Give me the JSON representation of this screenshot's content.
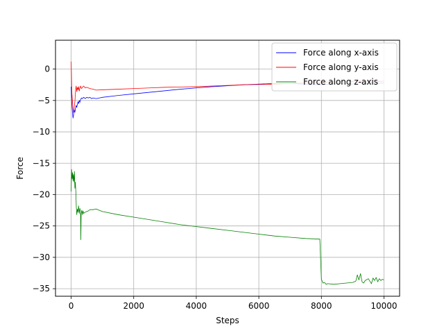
{
  "chart_data": {
    "type": "line",
    "title": "",
    "xlabel": "Steps",
    "ylabel": "Force",
    "xlim": [
      -500,
      10500
    ],
    "ylim": [
      -36.2,
      4.6
    ],
    "xticks": [
      0,
      2000,
      4000,
      6000,
      8000,
      10000
    ],
    "yticks": [
      0,
      -5,
      -10,
      -15,
      -20,
      -25,
      -30,
      -35
    ],
    "grid": true,
    "legend_position": "top-right",
    "series": [
      {
        "name": "Force along x-axis",
        "color": "#0000ff",
        "x": [
          0,
          20,
          40,
          60,
          80,
          100,
          120,
          140,
          160,
          180,
          200,
          220,
          240,
          260,
          280,
          300,
          330,
          360,
          400,
          450,
          500,
          550,
          600,
          650,
          700,
          800,
          900,
          1000,
          1500,
          2000,
          2500,
          3000,
          3500,
          4000,
          4500,
          5000,
          5500,
          6000,
          6500,
          7000,
          7500,
          8000,
          8500,
          9000,
          9200,
          9400,
          9600,
          9800,
          10000
        ],
        "y": [
          -2.8,
          -5.5,
          -6.8,
          -7.8,
          -7.2,
          -6.5,
          -6.9,
          -6.2,
          -5.8,
          -6.1,
          -5.6,
          -5.2,
          -5.5,
          -5.0,
          -5.3,
          -4.9,
          -4.6,
          -4.7,
          -4.5,
          -4.7,
          -4.5,
          -4.6,
          -4.5,
          -4.7,
          -4.6,
          -4.7,
          -4.6,
          -4.5,
          -4.2,
          -3.95,
          -3.7,
          -3.45,
          -3.2,
          -3.0,
          -2.8,
          -2.65,
          -2.5,
          -2.4,
          -2.3,
          -2.3,
          -2.4,
          -2.5,
          -2.3,
          -2.4,
          -2.2,
          -2.3,
          -2.2,
          -2.3,
          -2.2
        ]
      },
      {
        "name": "Force along y-axis",
        "color": "#ff0000",
        "x": [
          0,
          10,
          20,
          40,
          60,
          80,
          100,
          120,
          140,
          160,
          180,
          200,
          220,
          240,
          260,
          280,
          300,
          330,
          360,
          400,
          450,
          500,
          600,
          700,
          800,
          1000,
          1500,
          2000,
          2500,
          3000,
          3500,
          4000,
          4500,
          5000,
          5500,
          6000,
          6500,
          7000,
          7500,
          8000,
          8500,
          9000,
          9200,
          9400,
          9600,
          9800,
          10000
        ],
        "y": [
          1.2,
          -0.8,
          -3.5,
          -5.0,
          -6.5,
          -7.0,
          -6.0,
          -5.2,
          -3.4,
          -2.7,
          -3.6,
          -2.9,
          -3.3,
          -2.8,
          -3.5,
          -3.0,
          -2.7,
          -3.1,
          -2.9,
          -2.7,
          -3.0,
          -2.9,
          -3.1,
          -3.2,
          -3.35,
          -3.3,
          -3.2,
          -3.1,
          -3.0,
          -2.9,
          -2.85,
          -2.8,
          -2.7,
          -2.6,
          -2.5,
          -2.45,
          -2.4,
          -2.3,
          -2.2,
          -2.1,
          -2.0,
          -2.0,
          -1.8,
          -2.1,
          -1.7,
          -2.0,
          -1.9
        ]
      },
      {
        "name": "Force along z-axis",
        "color": "#008000",
        "x": [
          0,
          15,
          30,
          45,
          60,
          75,
          90,
          105,
          120,
          135,
          150,
          165,
          180,
          200,
          220,
          240,
          260,
          280,
          300,
          310,
          320,
          340,
          360,
          380,
          400,
          450,
          500,
          550,
          600,
          700,
          800,
          900,
          1000,
          1500,
          2000,
          2500,
          3000,
          3500,
          4000,
          4500,
          5000,
          5500,
          6000,
          6500,
          7000,
          7500,
          7950,
          8000,
          8010,
          8050,
          8100,
          8150,
          8200,
          8400,
          8600,
          8800,
          9000,
          9100,
          9150,
          9200,
          9250,
          9300,
          9350,
          9400,
          9500,
          9600,
          9650,
          9700,
          9750,
          9800,
          9850,
          9900,
          9950,
          10000
        ],
        "y": [
          -19.5,
          -16.0,
          -17.5,
          -16.5,
          -17.8,
          -16.8,
          -18.0,
          -16.3,
          -19.0,
          -18.0,
          -19.5,
          -22.0,
          -23.2,
          -22.3,
          -22.8,
          -21.8,
          -23.0,
          -22.2,
          -22.8,
          -27.2,
          -23.0,
          -22.5,
          -23.2,
          -22.6,
          -23.0,
          -22.8,
          -22.7,
          -22.6,
          -22.4,
          -22.4,
          -22.3,
          -22.5,
          -22.7,
          -23.2,
          -23.6,
          -24.0,
          -24.4,
          -24.8,
          -25.1,
          -25.4,
          -25.7,
          -26.0,
          -26.3,
          -26.6,
          -26.8,
          -27.0,
          -27.1,
          -33.5,
          -33.6,
          -34.1,
          -34.0,
          -34.3,
          -34.2,
          -34.3,
          -34.2,
          -34.1,
          -34.0,
          -33.8,
          -32.8,
          -33.6,
          -32.6,
          -33.9,
          -34.1,
          -33.7,
          -33.4,
          -34.2,
          -33.3,
          -33.7,
          -33.2,
          -33.9,
          -33.4,
          -33.7,
          -33.5,
          -33.6
        ]
      }
    ]
  }
}
